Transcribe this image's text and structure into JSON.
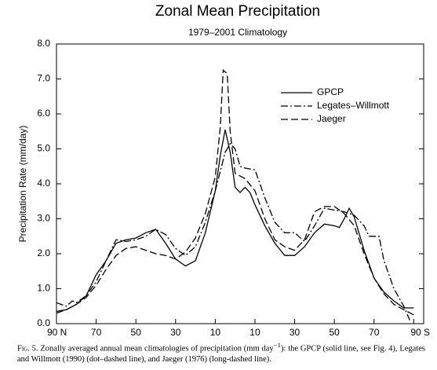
{
  "chart_data": {
    "type": "line",
    "title": "Zonal Mean Precipitation",
    "subtitle": "1979–2001 Climatology",
    "ylabel": "Precipitation Rate (mm/day)",
    "xlim": [
      90,
      -95
    ],
    "ylim": [
      0,
      8
    ],
    "xticks": [
      {
        "value": 90,
        "label": "90 N"
      },
      {
        "value": 70,
        "label": "70"
      },
      {
        "value": 50,
        "label": "50"
      },
      {
        "value": 30,
        "label": "30"
      },
      {
        "value": 10,
        "label": "10"
      },
      {
        "value": -10,
        "label": "10"
      },
      {
        "value": -30,
        "label": "30"
      },
      {
        "value": -50,
        "label": "50"
      },
      {
        "value": -70,
        "label": "70"
      },
      {
        "value": -90,
        "label": "90 S"
      }
    ],
    "yticks": [
      {
        "value": 0,
        "label": "0.0"
      },
      {
        "value": 1,
        "label": "1.0"
      },
      {
        "value": 2,
        "label": "2.0"
      },
      {
        "value": 3,
        "label": "3.0"
      },
      {
        "value": 4,
        "label": "4.0"
      },
      {
        "value": 5,
        "label": "5.0"
      },
      {
        "value": 6,
        "label": "6.0"
      },
      {
        "value": 7,
        "label": "7.0"
      },
      {
        "value": 8,
        "label": "8.0"
      }
    ],
    "grid": false,
    "legend": "upper right",
    "series": [
      {
        "name": "GPCP",
        "color": "#000000",
        "dash": "solid",
        "x": [
          90,
          85,
          80,
          75,
          70,
          65,
          60,
          55,
          50,
          45,
          40,
          35,
          30,
          25,
          20,
          15,
          10,
          7.5,
          5,
          2.5,
          0,
          -2.5,
          -5,
          -7.5,
          -10,
          -15,
          -20,
          -25,
          -30,
          -35,
          -40,
          -45,
          -50,
          -52.5,
          -55,
          -57.5,
          -60,
          -65,
          -70,
          -75,
          -80,
          -85,
          -90
        ],
        "values": [
          0.35,
          0.4,
          0.55,
          0.8,
          1.4,
          1.8,
          2.3,
          2.4,
          2.45,
          2.6,
          2.7,
          2.3,
          1.85,
          1.65,
          1.8,
          2.6,
          3.8,
          4.8,
          5.55,
          4.9,
          3.9,
          3.75,
          3.9,
          3.75,
          3.4,
          2.8,
          2.3,
          1.95,
          1.95,
          2.2,
          2.6,
          2.85,
          2.8,
          2.75,
          3.0,
          3.3,
          3.05,
          2.1,
          1.3,
          0.9,
          0.65,
          0.45,
          0.45
        ]
      },
      {
        "name": "Legates–Willmott",
        "color": "#000000",
        "dash": "dotdash",
        "x": [
          90,
          85,
          82,
          80,
          75,
          70,
          65,
          60,
          55,
          50,
          45,
          40,
          35,
          30,
          25,
          20,
          15,
          10,
          5,
          2.5,
          0,
          -2.5,
          -5,
          -10,
          -15,
          -20,
          -25,
          -30,
          -35,
          -40,
          -45,
          -50,
          -55,
          -60,
          -65,
          -67.5,
          -70,
          -72.5,
          -75,
          -80,
          -85,
          -88
        ],
        "values": [
          0.6,
          0.5,
          0.65,
          0.6,
          0.8,
          1.2,
          1.8,
          2.4,
          2.35,
          2.4,
          2.5,
          2.7,
          2.55,
          2.15,
          1.95,
          2.2,
          2.9,
          3.8,
          4.9,
          5.15,
          5.0,
          4.5,
          4.45,
          4.4,
          3.6,
          2.9,
          2.6,
          2.6,
          2.35,
          2.8,
          3.3,
          3.25,
          3.2,
          3.1,
          2.8,
          2.5,
          2.5,
          2.5,
          1.8,
          1.0,
          0.5,
          0.1
        ]
      },
      {
        "name": "Jaeger",
        "color": "#000000",
        "dash": "longdash",
        "x": [
          90,
          85,
          80,
          75,
          70,
          65,
          60,
          55,
          50,
          45,
          40,
          35,
          30,
          25,
          20,
          15,
          10,
          7.5,
          6,
          4,
          2.5,
          0,
          -5,
          -10,
          -15,
          -20,
          -25,
          -30,
          -35,
          -40,
          -45,
          -50,
          -55,
          -60,
          -65,
          -70,
          -75,
          -80,
          -85,
          -90
        ],
        "values": [
          0.3,
          0.4,
          0.55,
          0.75,
          1.1,
          1.55,
          1.95,
          2.15,
          2.2,
          2.1,
          2.0,
          1.95,
          1.85,
          2.05,
          2.45,
          3.15,
          4.2,
          5.6,
          7.25,
          7.15,
          5.5,
          4.3,
          4.15,
          3.8,
          3.0,
          2.4,
          2.2,
          2.1,
          2.4,
          3.2,
          3.35,
          3.35,
          3.15,
          2.8,
          2.0,
          1.3,
          0.85,
          0.55,
          0.4,
          0.25
        ]
      }
    ]
  },
  "caption": {
    "label": "Fig. 5.",
    "before": "Zonally averaged annual mean climatologies of precipitation (mm day",
    "sup": "−1",
    "after": "): the GPCP (solid line, see Fig. 4), Legates and Willmott (1990) (dot–dashed line), and Jaeger (1976) (long-dashed line)."
  }
}
